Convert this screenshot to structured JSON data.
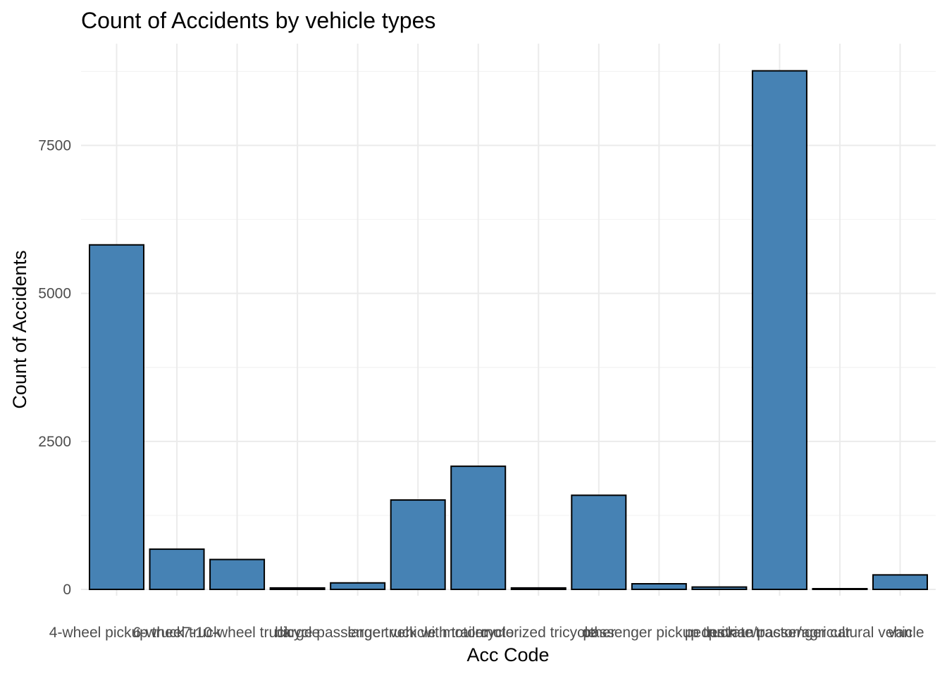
{
  "chart_data": {
    "type": "bar",
    "title": "Count of Accidents by vehicle types",
    "xlabel": "Acc Code",
    "ylabel": "Count of Accidents",
    "categories": [
      "4-wheel pickup truck",
      "6-wheel truck",
      "7-10-wheel truck",
      "bicycle",
      "large passenger vehicle",
      "large truck with trailer",
      "motorcycle",
      "motorized tricycle",
      "other",
      "passenger pickup truck",
      "pedestrian",
      "private/passenger car",
      "tractor/agricultural vehicle",
      "van"
    ],
    "values": [
      5820,
      680,
      505,
      25,
      110,
      1510,
      2080,
      25,
      1590,
      95,
      40,
      8760,
      10,
      245
    ],
    "ylim": [
      0,
      9000
    ],
    "yticks": [
      0,
      2500,
      5000,
      7500
    ],
    "grid": true,
    "bar_fill": "#4682B4",
    "bar_stroke": "#000000",
    "grid_color": "#EBEBEB"
  }
}
